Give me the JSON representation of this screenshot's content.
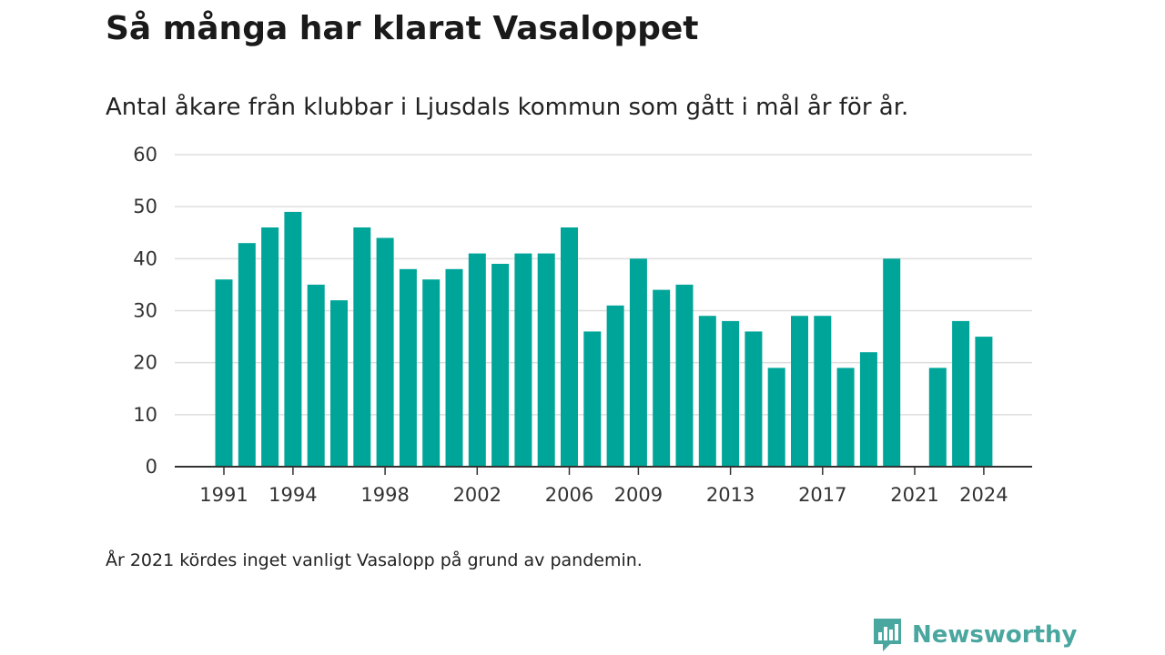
{
  "header": {
    "title": "Så många har klarat Vasaloppet",
    "subtitle": "Antal åkare från klubbar i Ljusdals kommun som gått i mål år för år."
  },
  "footer": {
    "note": "År 2021 kördes inget vanligt Vasalopp på grund av pandemin.",
    "brand": "Newsworthy"
  },
  "colors": {
    "bar": "#00a599",
    "grid": "#dddddd",
    "axis": "#333333",
    "brand": "#4aa79f"
  },
  "icons": {
    "brand_logo": "newsworthy-logo-icon"
  },
  "chart_data": {
    "type": "bar",
    "title": "Så många har klarat Vasaloppet",
    "subtitle": "Antal åkare från klubbar i Ljusdals kommun som gått i mål år för år.",
    "xlabel": "",
    "ylabel": "",
    "x": [
      1991,
      1992,
      1993,
      1994,
      1995,
      1996,
      1997,
      1998,
      1999,
      2000,
      2001,
      2002,
      2003,
      2004,
      2005,
      2006,
      2007,
      2008,
      2009,
      2010,
      2011,
      2012,
      2013,
      2014,
      2015,
      2016,
      2017,
      2018,
      2019,
      2020,
      2021,
      2022,
      2023,
      2024
    ],
    "values": [
      36,
      43,
      46,
      49,
      35,
      32,
      46,
      44,
      38,
      36,
      38,
      41,
      39,
      41,
      41,
      46,
      26,
      31,
      40,
      34,
      35,
      29,
      28,
      26,
      19,
      29,
      29,
      19,
      22,
      40,
      null,
      19,
      28,
      25
    ],
    "xticks": [
      1991,
      1994,
      1998,
      2002,
      2006,
      2009,
      2013,
      2017,
      2021,
      2024
    ],
    "yticks": [
      0,
      10,
      20,
      30,
      40,
      50,
      60
    ],
    "ylim": [
      0,
      60
    ],
    "grid": true,
    "legend": "none"
  }
}
